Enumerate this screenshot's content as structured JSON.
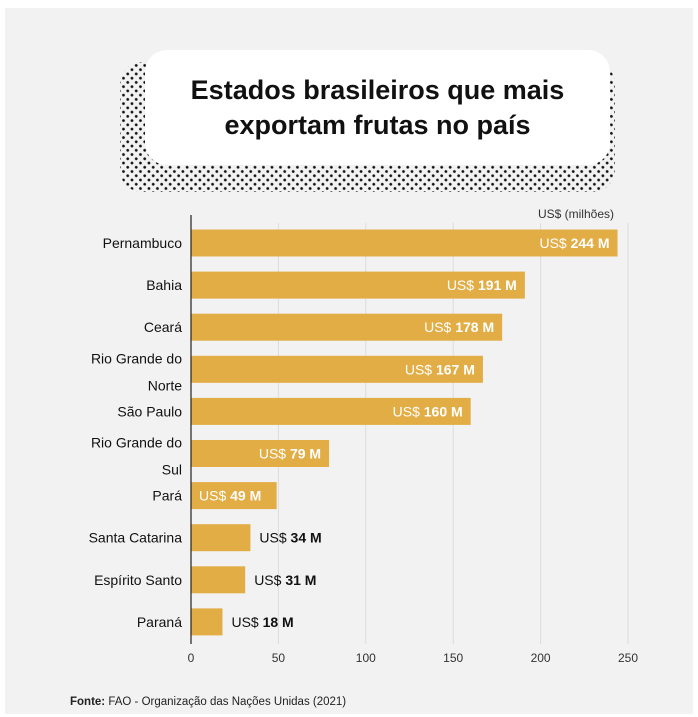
{
  "title": "Estados brasileiros que mais exportam frutas no país",
  "unit_label": "US$ (milhões)",
  "footer": {
    "source_label": "Fonte:",
    "source_text": "FAO - Organização das Nações Unidas (2021)"
  },
  "colors": {
    "bar": "#e2ad45",
    "background": "#f2f2f2",
    "label_inside": "#ffffff",
    "label_outside": "#111111"
  },
  "chart_data": {
    "type": "bar",
    "orientation": "horizontal",
    "categories": [
      [
        "Pernambuco"
      ],
      [
        "Bahia"
      ],
      [
        "Ceará"
      ],
      [
        "Rio Grande do",
        "Norte"
      ],
      [
        "São Paulo"
      ],
      [
        "Rio Grande do",
        "Sul"
      ],
      [
        "Pará"
      ],
      [
        "Santa Catarina"
      ],
      [
        "Espírito Santo"
      ],
      [
        "Paraná"
      ]
    ],
    "values": [
      244,
      191,
      178,
      167,
      160,
      79,
      49,
      34,
      31,
      18
    ],
    "value_labels": [
      {
        "prefix": "US$",
        "value": "244 M"
      },
      {
        "prefix": "US$",
        "value": "191 M"
      },
      {
        "prefix": "US$",
        "value": "178 M"
      },
      {
        "prefix": "US$",
        "value": "167 M"
      },
      {
        "prefix": "US$",
        "value": "160 M"
      },
      {
        "prefix": "US$",
        "value": "79 M"
      },
      {
        "prefix": "US$",
        "value": "49 M"
      },
      {
        "prefix": "US$",
        "value": "34 M"
      },
      {
        "prefix": "US$",
        "value": "31 M"
      },
      {
        "prefix": "US$",
        "value": "18 M"
      }
    ],
    "x_ticks": [
      0,
      50,
      100,
      150,
      200,
      250
    ],
    "xlim": [
      0,
      250
    ],
    "grid": true
  }
}
